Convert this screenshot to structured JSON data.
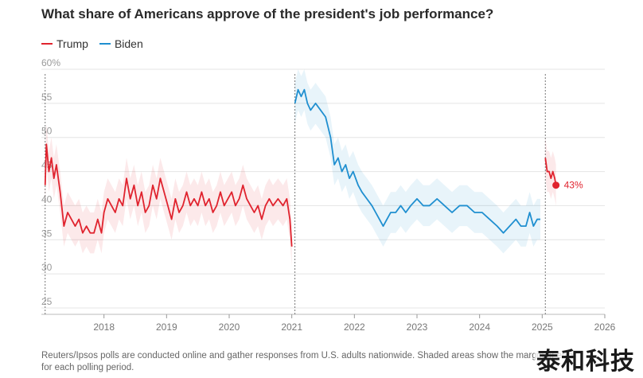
{
  "title": "What share of Americans approve of the president's job performance?",
  "legend": [
    {
      "label": "Trump",
      "color": "#e0232e"
    },
    {
      "label": "Biden",
      "color": "#1f8fd0"
    }
  ],
  "note": {
    "line1": "Reuters/Ipsos polls are conducted online and gather responses from U.S. adults nationwide. Shaded areas show the margin of error",
    "line2": "for each polling period."
  },
  "watermark": "泰和科技",
  "chart_data": {
    "type": "line",
    "title": "What share of Americans approve of the president's job performance?",
    "xlabel": "",
    "ylabel": "",
    "ylim": [
      25,
      60
    ],
    "xlim": [
      2017.0,
      2026.0
    ],
    "y_ticks": [
      {
        "value": 25,
        "label": "25"
      },
      {
        "value": 30,
        "label": "30"
      },
      {
        "value": 35,
        "label": "35"
      },
      {
        "value": 40,
        "label": "40"
      },
      {
        "value": 45,
        "label": "45"
      },
      {
        "value": 50,
        "label": "50"
      },
      {
        "value": 55,
        "label": "55"
      },
      {
        "value": 60,
        "label": "60%"
      }
    ],
    "x_ticks": [
      {
        "value": 2018,
        "label": "2018"
      },
      {
        "value": 2019,
        "label": "2019"
      },
      {
        "value": 2020,
        "label": "2020"
      },
      {
        "value": 2021,
        "label": "2021"
      },
      {
        "value": 2022,
        "label": "2022"
      },
      {
        "value": 2023,
        "label": "2023"
      },
      {
        "value": 2024,
        "label": "2024"
      },
      {
        "value": 2025,
        "label": "2025"
      },
      {
        "value": 2026,
        "label": "2026"
      }
    ],
    "inaugurations": [
      2017.06,
      2021.05,
      2025.05
    ],
    "grid": true,
    "series": [
      {
        "name": "Trump",
        "color": "#e0232e",
        "margin": 3,
        "points": [
          [
            2017.06,
            43
          ],
          [
            2017.08,
            49
          ],
          [
            2017.12,
            45
          ],
          [
            2017.16,
            47
          ],
          [
            2017.2,
            44
          ],
          [
            2017.24,
            46
          ],
          [
            2017.3,
            42
          ],
          [
            2017.36,
            37
          ],
          [
            2017.42,
            39
          ],
          [
            2017.48,
            38
          ],
          [
            2017.54,
            37
          ],
          [
            2017.6,
            38
          ],
          [
            2017.66,
            36
          ],
          [
            2017.72,
            37
          ],
          [
            2017.78,
            36
          ],
          [
            2017.84,
            36
          ],
          [
            2017.9,
            38
          ],
          [
            2017.96,
            36
          ],
          [
            2018.0,
            39
          ],
          [
            2018.06,
            41
          ],
          [
            2018.12,
            40
          ],
          [
            2018.18,
            39
          ],
          [
            2018.24,
            41
          ],
          [
            2018.3,
            40
          ],
          [
            2018.36,
            44
          ],
          [
            2018.42,
            41
          ],
          [
            2018.48,
            43
          ],
          [
            2018.54,
            40
          ],
          [
            2018.6,
            42
          ],
          [
            2018.66,
            39
          ],
          [
            2018.72,
            40
          ],
          [
            2018.78,
            43
          ],
          [
            2018.84,
            41
          ],
          [
            2018.9,
            44
          ],
          [
            2018.96,
            42
          ],
          [
            2019.02,
            40
          ],
          [
            2019.08,
            38
          ],
          [
            2019.14,
            41
          ],
          [
            2019.2,
            39
          ],
          [
            2019.26,
            40
          ],
          [
            2019.32,
            42
          ],
          [
            2019.38,
            40
          ],
          [
            2019.44,
            41
          ],
          [
            2019.5,
            40
          ],
          [
            2019.56,
            42
          ],
          [
            2019.62,
            40
          ],
          [
            2019.68,
            41
          ],
          [
            2019.74,
            39
          ],
          [
            2019.8,
            40
          ],
          [
            2019.86,
            42
          ],
          [
            2019.92,
            40
          ],
          [
            2019.98,
            41
          ],
          [
            2020.04,
            42
          ],
          [
            2020.1,
            40
          ],
          [
            2020.16,
            41
          ],
          [
            2020.22,
            43
          ],
          [
            2020.28,
            41
          ],
          [
            2020.34,
            40
          ],
          [
            2020.4,
            39
          ],
          [
            2020.46,
            40
          ],
          [
            2020.52,
            38
          ],
          [
            2020.58,
            40
          ],
          [
            2020.64,
            41
          ],
          [
            2020.7,
            40
          ],
          [
            2020.78,
            41
          ],
          [
            2020.86,
            40
          ],
          [
            2020.92,
            41
          ],
          [
            2020.97,
            38
          ],
          [
            2021.0,
            34
          ]
        ]
      },
      {
        "name": "Biden",
        "color": "#1f8fd0",
        "margin": 3,
        "points": [
          [
            2021.05,
            55
          ],
          [
            2021.1,
            57
          ],
          [
            2021.15,
            56
          ],
          [
            2021.2,
            57
          ],
          [
            2021.25,
            55
          ],
          [
            2021.3,
            54
          ],
          [
            2021.38,
            55
          ],
          [
            2021.46,
            54
          ],
          [
            2021.54,
            53
          ],
          [
            2021.62,
            50
          ],
          [
            2021.68,
            46
          ],
          [
            2021.74,
            47
          ],
          [
            2021.8,
            45
          ],
          [
            2021.86,
            46
          ],
          [
            2021.92,
            44
          ],
          [
            2021.98,
            45
          ],
          [
            2022.06,
            43
          ],
          [
            2022.12,
            42
          ],
          [
            2022.2,
            41
          ],
          [
            2022.28,
            40
          ],
          [
            2022.34,
            39
          ],
          [
            2022.4,
            38
          ],
          [
            2022.46,
            37
          ],
          [
            2022.52,
            38
          ],
          [
            2022.58,
            39
          ],
          [
            2022.66,
            39
          ],
          [
            2022.74,
            40
          ],
          [
            2022.82,
            39
          ],
          [
            2022.9,
            40
          ],
          [
            2023.0,
            41
          ],
          [
            2023.1,
            40
          ],
          [
            2023.2,
            40
          ],
          [
            2023.32,
            41
          ],
          [
            2023.44,
            40
          ],
          [
            2023.56,
            39
          ],
          [
            2023.68,
            40
          ],
          [
            2023.8,
            40
          ],
          [
            2023.92,
            39
          ],
          [
            2024.04,
            39
          ],
          [
            2024.16,
            38
          ],
          [
            2024.28,
            37
          ],
          [
            2024.38,
            36
          ],
          [
            2024.48,
            37
          ],
          [
            2024.58,
            38
          ],
          [
            2024.66,
            37
          ],
          [
            2024.74,
            37
          ],
          [
            2024.8,
            39
          ],
          [
            2024.86,
            37
          ],
          [
            2024.92,
            38
          ],
          [
            2024.97,
            38
          ]
        ]
      },
      {
        "name": "Trump",
        "color": "#e0232e",
        "margin": 3,
        "points": [
          [
            2025.05,
            47
          ],
          [
            2025.08,
            45
          ],
          [
            2025.11,
            45
          ],
          [
            2025.14,
            44
          ],
          [
            2025.17,
            45
          ],
          [
            2025.2,
            44
          ],
          [
            2025.22,
            43
          ]
        ]
      }
    ],
    "annotation": {
      "x": 2025.22,
      "y": 43,
      "label": "43%"
    }
  }
}
